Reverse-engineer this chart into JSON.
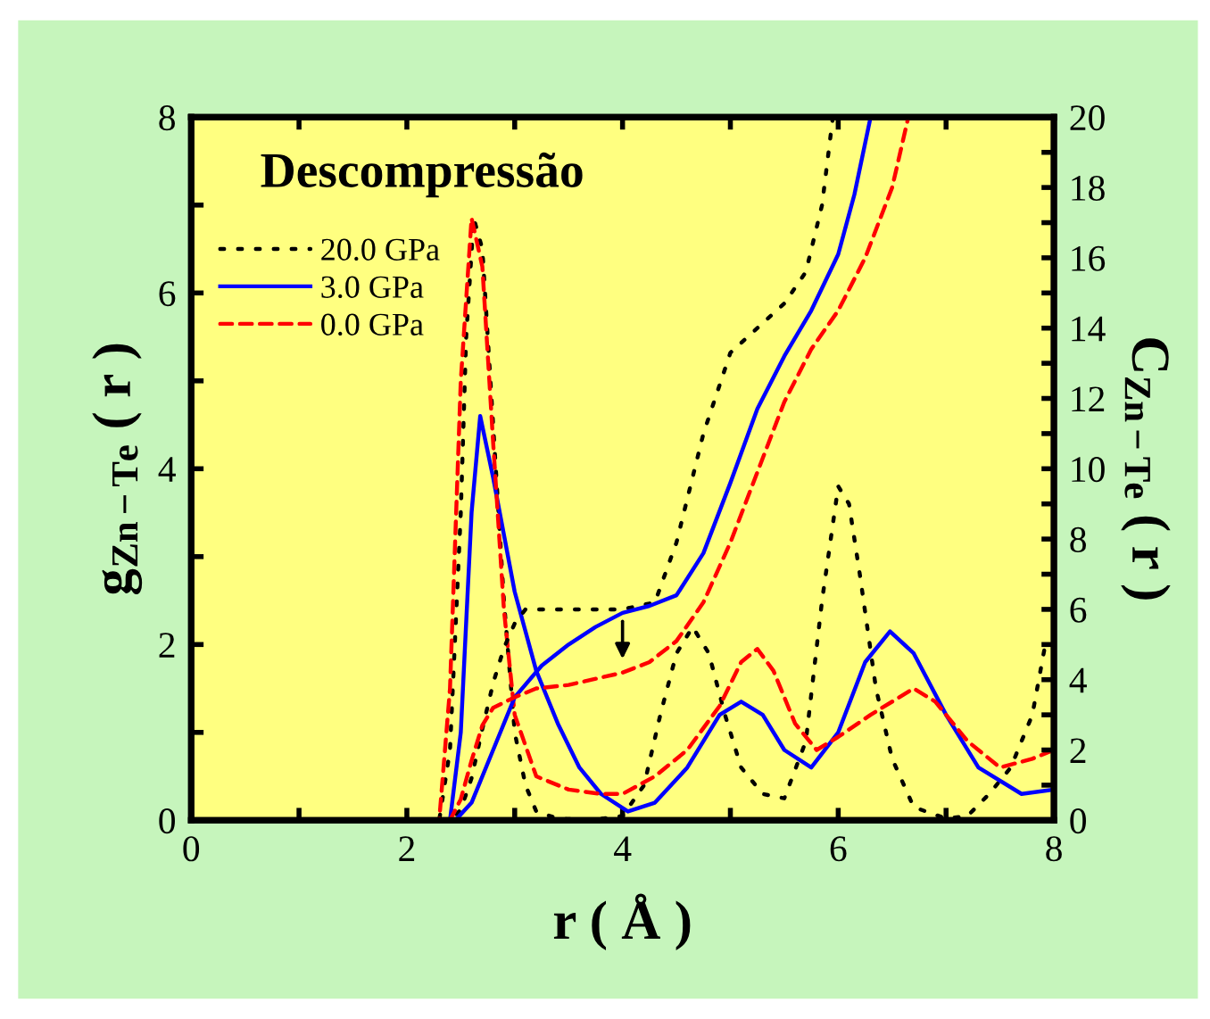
{
  "chart_data": {
    "type": "line",
    "title": "Descompressão",
    "xlabel": "r ( Å )",
    "ylabel": "g$_{Zn−Te}$ ( r )",
    "y2label": "C$_{Zn−Te}$ ( r )",
    "xlim": [
      0,
      8
    ],
    "xticks": [
      0,
      {
        "value": 1,
        "label": null
      },
      2,
      {
        "value": 3,
        "label": null
      },
      4,
      {
        "value": 5,
        "label": null
      },
      6,
      {
        "value": 7,
        "label": null
      },
      8
    ],
    "ylim": [
      0,
      8
    ],
    "yticks": [
      0,
      {
        "value": 1,
        "label": null
      },
      2,
      {
        "value": 3,
        "label": null
      },
      4,
      {
        "value": 5,
        "label": null
      },
      6,
      {
        "value": 7,
        "label": null
      },
      8
    ],
    "y2lim": [
      0,
      20
    ],
    "y2ticks": [
      0,
      {
        "value": 1,
        "label": null
      },
      2,
      {
        "value": 3,
        "label": null
      },
      4,
      {
        "value": 5,
        "label": null
      },
      6,
      {
        "value": 7,
        "label": null
      },
      8,
      {
        "value": 9,
        "label": null
      },
      10,
      {
        "value": 11,
        "label": null
      },
      12,
      {
        "value": 13,
        "label": null
      },
      14,
      {
        "value": 15,
        "label": null
      },
      16,
      {
        "value": 17,
        "label": null
      },
      18,
      {
        "value": 19,
        "label": null
      },
      20
    ],
    "legend": "top left",
    "grid": false,
    "series": [
      {
        "name": "20.0 GPa",
        "color": "#000000",
        "line_style": "dotted",
        "x": [
          0,
          2.3,
          2.4,
          2.5,
          2.55,
          2.62,
          2.7,
          2.8,
          2.9,
          3.0,
          3.1,
          3.2,
          3.4,
          3.7,
          4.0,
          4.2,
          4.35,
          4.5,
          4.65,
          4.8,
          4.95,
          5.1,
          5.3,
          5.5,
          5.7,
          5.85,
          6.0,
          6.1,
          6.2,
          6.35,
          6.5,
          6.7,
          7.0,
          7.2,
          7.4,
          7.6,
          7.8,
          7.92
        ],
        "values": [
          0,
          0,
          0.8,
          3.5,
          5.5,
          6.85,
          6.5,
          4.5,
          2.5,
          1.0,
          0.4,
          0.1,
          0.02,
          0,
          0.05,
          0.4,
          1.2,
          1.9,
          2.2,
          1.9,
          1.2,
          0.6,
          0.3,
          0.25,
          0.9,
          2.5,
          3.8,
          3.6,
          2.8,
          1.5,
          0.7,
          0.15,
          0.02,
          0.05,
          0.3,
          0.6,
          1.2,
          2.0
        ]
      },
      {
        "name": "3.0 GPa",
        "color": "#0000ff",
        "line_style": "solid",
        "x": [
          0,
          2.4,
          2.5,
          2.6,
          2.68,
          2.8,
          3.0,
          3.2,
          3.4,
          3.6,
          3.8,
          4.05,
          4.3,
          4.6,
          4.9,
          5.1,
          5.3,
          5.5,
          5.75,
          6.0,
          6.25,
          6.48,
          6.7,
          7.0,
          7.3,
          7.7,
          8.0
        ],
        "values": [
          0,
          0,
          1.0,
          3.5,
          4.6,
          3.9,
          2.6,
          1.7,
          1.1,
          0.6,
          0.3,
          0.1,
          0.2,
          0.6,
          1.2,
          1.35,
          1.2,
          0.8,
          0.6,
          1.0,
          1.8,
          2.15,
          1.9,
          1.2,
          0.6,
          0.3,
          0.35
        ]
      },
      {
        "name": "0.0 GPa",
        "color": "#ff0000",
        "line_style": "dashed",
        "x": [
          0,
          2.3,
          2.4,
          2.5,
          2.6,
          2.7,
          2.8,
          2.9,
          3.0,
          3.2,
          3.5,
          3.8,
          4.0,
          4.3,
          4.6,
          4.9,
          5.1,
          5.25,
          5.4,
          5.6,
          5.8,
          6.0,
          6.3,
          6.7,
          6.9,
          7.2,
          7.5,
          7.8,
          8.0
        ],
        "values": [
          0,
          0,
          1.5,
          5.0,
          6.85,
          6.3,
          4.3,
          2.4,
          1.2,
          0.5,
          0.35,
          0.3,
          0.3,
          0.5,
          0.8,
          1.3,
          1.8,
          1.95,
          1.7,
          1.1,
          0.8,
          0.95,
          1.2,
          1.5,
          1.35,
          0.9,
          0.6,
          0.7,
          0.8
        ]
      },
      {
        "color": "#000000",
        "line_style": "dotted",
        "axis": "y2",
        "x": [
          0,
          2.4,
          2.5,
          2.6,
          2.7,
          2.8,
          2.9,
          3.0,
          3.1,
          3.3,
          3.6,
          4.0,
          4.3,
          4.5,
          4.75,
          5.0,
          5.25,
          5.5,
          5.7,
          5.85,
          5.95
        ],
        "values": [
          0,
          0,
          0.3,
          1.2,
          2.6,
          3.9,
          4.9,
          5.6,
          6.0,
          6.0,
          6.0,
          6.0,
          6.2,
          7.9,
          11.0,
          13.3,
          14.0,
          14.7,
          15.6,
          17.5,
          20
        ]
      },
      {
        "color": "#0000ff",
        "line_style": "solid",
        "axis": "y2",
        "x": [
          0,
          2.45,
          2.6,
          2.8,
          3.0,
          3.25,
          3.5,
          3.75,
          4.0,
          4.25,
          4.5,
          4.75,
          5.0,
          5.25,
          5.5,
          5.75,
          6.0,
          6.15,
          6.3
        ],
        "values": [
          0,
          0,
          0.5,
          2.0,
          3.5,
          4.4,
          5.0,
          5.5,
          5.9,
          6.1,
          6.4,
          7.6,
          9.6,
          11.7,
          13.2,
          14.5,
          16.1,
          17.8,
          20
        ]
      },
      {
        "color": "#ff0000",
        "line_style": "dashed",
        "axis": "y2",
        "x": [
          0,
          2.4,
          2.5,
          2.6,
          2.7,
          2.8,
          3.0,
          3.2,
          3.5,
          4.0,
          4.25,
          4.5,
          4.75,
          5.0,
          5.25,
          5.5,
          5.75,
          6.0,
          6.25,
          6.5,
          6.65
        ],
        "values": [
          0,
          0,
          0.6,
          1.7,
          2.7,
          3.2,
          3.5,
          3.75,
          3.85,
          4.2,
          4.5,
          5.1,
          6.2,
          7.9,
          9.9,
          11.9,
          13.4,
          14.5,
          16.0,
          18.0,
          20
        ]
      }
    ]
  }
}
